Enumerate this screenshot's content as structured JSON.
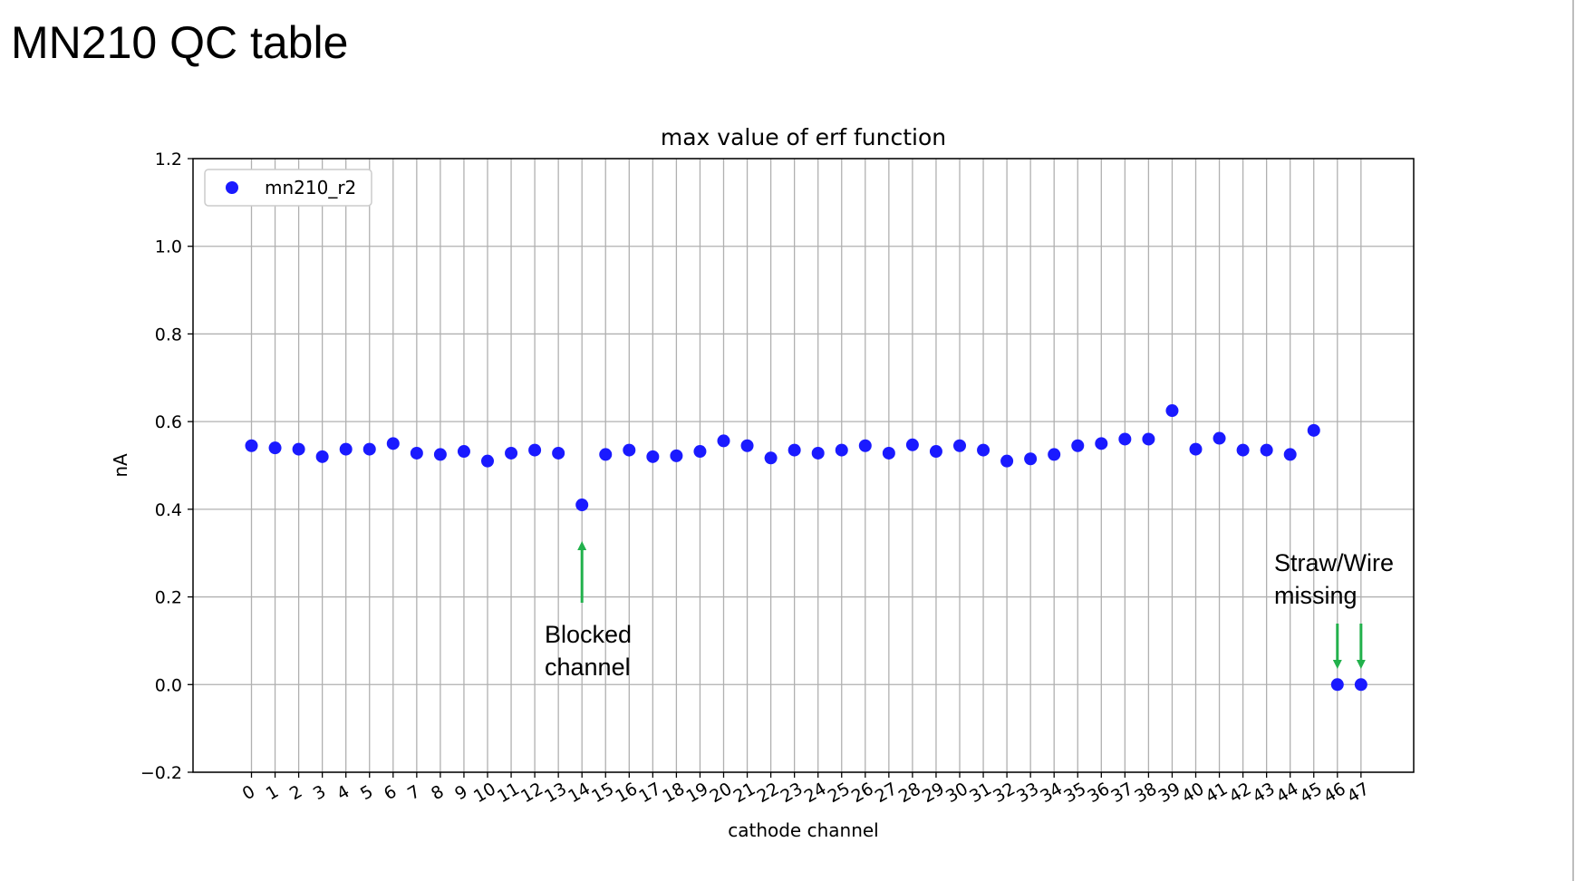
{
  "page": {
    "title": "MN210 QC table"
  },
  "colors": {
    "points": "#1a1aff",
    "arrows": "#22b14c",
    "grid": "#b0b0b0",
    "axes": "#000000"
  },
  "annotations": {
    "blocked": {
      "text": "Blocked\nchannel",
      "channel": 14
    },
    "missing": {
      "text": "Straw/Wire\nmissing",
      "channels": [
        46,
        47
      ]
    }
  },
  "chart_data": {
    "type": "scatter",
    "title": "max value of erf function",
    "xlabel": "cathode channel",
    "ylabel": "nA",
    "xlim": [
      -2,
      50
    ],
    "ylim": [
      -0.2,
      1.2
    ],
    "yticks": [
      -0.2,
      0.0,
      0.2,
      0.4,
      0.6,
      0.8,
      1.0,
      1.2
    ],
    "ytick_labels": [
      "−0.2",
      "0.0",
      "0.2",
      "0.4",
      "0.6",
      "0.8",
      "1.0",
      "1.2"
    ],
    "xticks": [
      0,
      1,
      2,
      3,
      4,
      5,
      6,
      7,
      8,
      9,
      10,
      11,
      12,
      13,
      14,
      15,
      16,
      17,
      18,
      19,
      20,
      21,
      22,
      23,
      24,
      25,
      26,
      27,
      28,
      29,
      30,
      31,
      32,
      33,
      34,
      35,
      36,
      37,
      38,
      39,
      40,
      41,
      42,
      43,
      44,
      45,
      46,
      47
    ],
    "grid": true,
    "legend_position": "top-left",
    "series": [
      {
        "name": "mn210_r2",
        "x": [
          0,
          1,
          2,
          3,
          4,
          5,
          6,
          7,
          8,
          9,
          10,
          11,
          12,
          13,
          14,
          15,
          16,
          17,
          18,
          19,
          20,
          21,
          22,
          23,
          24,
          25,
          26,
          27,
          28,
          29,
          30,
          31,
          32,
          33,
          34,
          35,
          36,
          37,
          38,
          39,
          40,
          41,
          42,
          43,
          44,
          45,
          46,
          47
        ],
        "y": [
          0.545,
          0.54,
          0.537,
          0.52,
          0.537,
          0.537,
          0.55,
          0.528,
          0.525,
          0.532,
          0.51,
          0.528,
          0.535,
          0.528,
          0.41,
          0.525,
          0.535,
          0.52,
          0.522,
          0.532,
          0.556,
          0.545,
          0.517,
          0.535,
          0.528,
          0.535,
          0.545,
          0.528,
          0.547,
          0.532,
          0.545,
          0.535,
          0.51,
          0.515,
          0.525,
          0.545,
          0.55,
          0.56,
          0.56,
          0.625,
          0.537,
          0.562,
          0.535,
          0.535,
          0.525,
          0.58,
          0.0,
          0.0
        ]
      }
    ]
  }
}
